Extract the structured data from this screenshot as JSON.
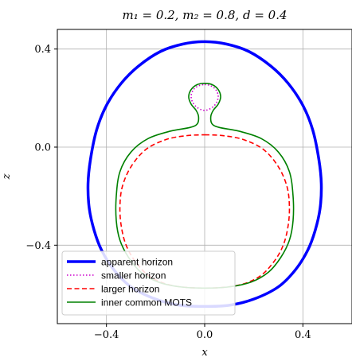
{
  "chart_data": {
    "type": "line",
    "title": "m₁ = 0.2, m₂ = 0.8, d = 0.4",
    "xlabel": "x",
    "ylabel": "z",
    "xlim": [
      -0.6,
      0.6
    ],
    "ylim": [
      -0.72,
      0.48
    ],
    "xticks": [
      -0.4,
      0.0,
      0.4
    ],
    "yticks": [
      -0.4,
      0.0,
      0.4
    ],
    "xtick_labels": [
      "−0.4",
      "0.0",
      "0.4"
    ],
    "ytick_labels": [
      "−0.4",
      "0.0",
      "0.4"
    ],
    "grid": true,
    "legend_position": "lower-left",
    "series": [
      {
        "name": "apparent horizon",
        "color": "#0000ff",
        "style": "solid-thick",
        "points": [
          [
            0.0,
            0.43
          ],
          [
            0.09,
            0.42
          ],
          [
            0.18,
            0.39
          ],
          [
            0.27,
            0.33
          ],
          [
            0.34,
            0.26
          ],
          [
            0.4,
            0.17
          ],
          [
            0.44,
            0.07
          ],
          [
            0.465,
            -0.05
          ],
          [
            0.475,
            -0.15
          ],
          [
            0.47,
            -0.25
          ],
          [
            0.45,
            -0.34
          ],
          [
            0.42,
            -0.42
          ],
          [
            0.37,
            -0.5
          ],
          [
            0.3,
            -0.57
          ],
          [
            0.2,
            -0.62
          ],
          [
            0.1,
            -0.645
          ],
          [
            0.0,
            -0.65
          ],
          [
            -0.1,
            -0.645
          ],
          [
            -0.2,
            -0.62
          ],
          [
            -0.3,
            -0.57
          ],
          [
            -0.37,
            -0.5
          ],
          [
            -0.42,
            -0.42
          ],
          [
            -0.45,
            -0.34
          ],
          [
            -0.47,
            -0.25
          ],
          [
            -0.475,
            -0.15
          ],
          [
            -0.465,
            -0.05
          ],
          [
            -0.44,
            0.07
          ],
          [
            -0.4,
            0.17
          ],
          [
            -0.34,
            0.26
          ],
          [
            -0.27,
            0.33
          ],
          [
            -0.18,
            0.39
          ],
          [
            -0.09,
            0.42
          ],
          [
            0.0,
            0.43
          ]
        ]
      },
      {
        "name": "smaller horizon",
        "color": "#cc00cc",
        "style": "dotted",
        "points": [
          [
            0.0,
            0.255
          ],
          [
            0.025,
            0.25
          ],
          [
            0.045,
            0.235
          ],
          [
            0.055,
            0.21
          ],
          [
            0.05,
            0.185
          ],
          [
            0.035,
            0.165
          ],
          [
            0.015,
            0.153
          ],
          [
            0.0,
            0.15
          ],
          [
            -0.015,
            0.153
          ],
          [
            -0.035,
            0.165
          ],
          [
            -0.05,
            0.185
          ],
          [
            -0.055,
            0.21
          ],
          [
            -0.045,
            0.235
          ],
          [
            -0.025,
            0.25
          ],
          [
            0.0,
            0.255
          ]
        ]
      },
      {
        "name": "larger horizon",
        "color": "#ff0000",
        "style": "dashed",
        "points": [
          [
            0.0,
            0.05
          ],
          [
            0.08,
            0.046
          ],
          [
            0.16,
            0.03
          ],
          [
            0.24,
            -0.01
          ],
          [
            0.3,
            -0.08
          ],
          [
            0.335,
            -0.16
          ],
          [
            0.345,
            -0.24
          ],
          [
            0.34,
            -0.32
          ],
          [
            0.32,
            -0.4
          ],
          [
            0.28,
            -0.47
          ],
          [
            0.22,
            -0.53
          ],
          [
            0.13,
            -0.565
          ],
          [
            0.0,
            -0.575
          ],
          [
            -0.13,
            -0.565
          ],
          [
            -0.22,
            -0.53
          ],
          [
            -0.28,
            -0.47
          ],
          [
            -0.32,
            -0.4
          ],
          [
            -0.34,
            -0.32
          ],
          [
            -0.345,
            -0.24
          ],
          [
            -0.335,
            -0.16
          ],
          [
            -0.3,
            -0.08
          ],
          [
            -0.24,
            -0.01
          ],
          [
            -0.16,
            0.03
          ],
          [
            -0.08,
            0.046
          ],
          [
            0.0,
            0.05
          ]
        ]
      },
      {
        "name": "inner common MOTS",
        "color": "#008000",
        "style": "solid",
        "points": [
          [
            0.0,
            0.26
          ],
          [
            0.03,
            0.255
          ],
          [
            0.055,
            0.235
          ],
          [
            0.065,
            0.205
          ],
          [
            0.055,
            0.175
          ],
          [
            0.035,
            0.15
          ],
          [
            0.025,
            0.125
          ],
          [
            0.03,
            0.095
          ],
          [
            0.06,
            0.08
          ],
          [
            0.14,
            0.065
          ],
          [
            0.23,
            0.035
          ],
          [
            0.3,
            -0.02
          ],
          [
            0.345,
            -0.1
          ],
          [
            0.36,
            -0.2
          ],
          [
            0.36,
            -0.3
          ],
          [
            0.345,
            -0.38
          ],
          [
            0.31,
            -0.45
          ],
          [
            0.26,
            -0.51
          ],
          [
            0.19,
            -0.55
          ],
          [
            0.1,
            -0.57
          ],
          [
            0.0,
            -0.575
          ],
          [
            -0.1,
            -0.57
          ],
          [
            -0.19,
            -0.55
          ],
          [
            -0.26,
            -0.51
          ],
          [
            -0.31,
            -0.45
          ],
          [
            -0.345,
            -0.38
          ],
          [
            -0.36,
            -0.3
          ],
          [
            -0.36,
            -0.2
          ],
          [
            -0.345,
            -0.1
          ],
          [
            -0.3,
            -0.02
          ],
          [
            -0.23,
            0.035
          ],
          [
            -0.14,
            0.065
          ],
          [
            -0.06,
            0.08
          ],
          [
            -0.03,
            0.095
          ],
          [
            -0.025,
            0.125
          ],
          [
            -0.035,
            0.15
          ],
          [
            -0.055,
            0.175
          ],
          [
            -0.065,
            0.205
          ],
          [
            -0.055,
            0.235
          ],
          [
            -0.03,
            0.255
          ],
          [
            0.0,
            0.26
          ]
        ]
      }
    ]
  }
}
